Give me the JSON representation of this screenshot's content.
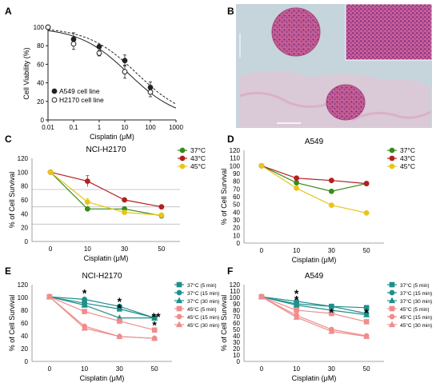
{
  "panel_labels": [
    "A",
    "B",
    "C",
    "D",
    "E",
    "F"
  ],
  "chart_data": [
    {
      "panel": "A",
      "type": "line",
      "xscale": "log",
      "xlim": [
        0.01,
        1000
      ],
      "ylim": [
        0,
        100
      ],
      "xticks": [
        "0.01",
        "0.1",
        "1",
        "10",
        "100",
        "1000"
      ],
      "yticks": [
        "0",
        "20",
        "40",
        "60",
        "80",
        "100"
      ],
      "title": "",
      "xlabel": "Cisplatin (μM)",
      "ylabel": "Cell Viability (%)",
      "legend_position": "bottom-left",
      "series": [
        {
          "name": "A549 cell line",
          "style": "dashed",
          "marker": "filled-circle",
          "color": "#222222",
          "x": [
            0.01,
            0.1,
            1,
            10,
            100
          ],
          "y": [
            100,
            87,
            79,
            64,
            35
          ],
          "err": [
            0,
            7,
            2,
            6,
            6
          ]
        },
        {
          "name": "H2170 cell line",
          "style": "solid",
          "marker": "open-circle",
          "color": "#222222",
          "x": [
            0.01,
            0.1,
            1,
            10,
            100
          ],
          "y": [
            100,
            82,
            72,
            52,
            30
          ],
          "err": [
            0,
            6,
            3,
            7,
            5
          ]
        }
      ]
    },
    {
      "panel": "C",
      "type": "line",
      "title": "NCI-H2170",
      "xlabel": "Cisplatin (μM)",
      "ylabel": "% of Cell Survival",
      "categories": [
        "0",
        "10",
        "30",
        "50"
      ],
      "ylim": [
        0,
        120
      ],
      "yticks": [
        "0",
        "20",
        "40",
        "60",
        "80",
        "100",
        "120"
      ],
      "gridlines": [
        25,
        50,
        75
      ],
      "legend_position": "top-right",
      "series": [
        {
          "name": "37°C",
          "color": "#3a8a1a",
          "marker": "circle",
          "values": [
            100,
            47,
            47,
            37
          ],
          "err": [
            0,
            0,
            0,
            0
          ]
        },
        {
          "name": "43°C",
          "color": "#b32020",
          "marker": "circle",
          "values": [
            100,
            87,
            60,
            50
          ],
          "err": [
            0,
            8,
            0,
            0
          ]
        },
        {
          "name": "45°C",
          "color": "#e8c51a",
          "marker": "circle",
          "values": [
            100,
            57,
            42,
            38
          ],
          "err": [
            0,
            5,
            0,
            0
          ]
        }
      ]
    },
    {
      "panel": "D",
      "type": "line",
      "title": "A549",
      "xlabel": "Cisplatin (μM)",
      "ylabel": "% of Cell Survival",
      "categories": [
        "0",
        "10",
        "30",
        "50"
      ],
      "ylim": [
        0,
        120
      ],
      "yticks": [
        "0",
        "10",
        "20",
        "30",
        "40",
        "50",
        "60",
        "70",
        "80",
        "90",
        "100",
        "110",
        "120"
      ],
      "legend_position": "top-right",
      "series": [
        {
          "name": "37°C",
          "color": "#3a8a1a",
          "marker": "circle",
          "values": [
            100,
            78,
            67,
            77
          ]
        },
        {
          "name": "43°C",
          "color": "#b32020",
          "marker": "circle",
          "values": [
            100,
            84,
            81,
            77
          ]
        },
        {
          "name": "45°C",
          "color": "#e8c51a",
          "marker": "circle",
          "values": [
            100,
            71,
            49,
            39
          ]
        }
      ]
    },
    {
      "panel": "E",
      "type": "line",
      "title": "NCI-H2170",
      "xlabel": "Cisplatin (μM)",
      "ylabel": "% of Cell Survival",
      "categories": [
        "0",
        "10",
        "30",
        "50"
      ],
      "ylim": [
        0,
        120
      ],
      "yticks": [
        "0",
        "20",
        "40",
        "60",
        "80",
        "100",
        "120"
      ],
      "legend_position": "top-right",
      "series": [
        {
          "name": "37°C (5 min)",
          "color": "#1f8f8a",
          "marker": "square",
          "values": [
            101,
            91,
            82,
            68
          ]
        },
        {
          "name": "37°C (15 min)",
          "color": "#1f8f8a",
          "marker": "circle",
          "values": [
            101,
            97,
            86,
            68
          ]
        },
        {
          "name": "37°C (30 min)",
          "color": "#1f8f8a",
          "marker": "triangle",
          "values": [
            101,
            88,
            68,
            68
          ]
        },
        {
          "name": "45°C (5 min)",
          "color": "#f08c8c",
          "marker": "square",
          "values": [
            101,
            78,
            63,
            49
          ]
        },
        {
          "name": "45°C (15 min)",
          "color": "#f08c8c",
          "marker": "circle",
          "values": [
            101,
            55,
            39,
            36
          ]
        },
        {
          "name": "45°C (30 min)",
          "color": "#f08c8c",
          "marker": "triangle",
          "values": [
            101,
            52,
            39,
            36
          ]
        }
      ],
      "annotations": [
        {
          "text": "*",
          "x": "10",
          "y": 107
        },
        {
          "text": "*",
          "x": "30",
          "y": 94
        },
        {
          "text": "*",
          "x": "30",
          "y": 84
        },
        {
          "text": "**",
          "x": "50",
          "y": 70
        },
        {
          "text": "*",
          "x": "50",
          "y": 57
        }
      ]
    },
    {
      "panel": "F",
      "type": "line",
      "title": "A549",
      "xlabel": "Cisplatin (μM)",
      "ylabel": "% of Cell Survival",
      "categories": [
        "0",
        "10",
        "30",
        "50"
      ],
      "ylim": [
        0,
        120
      ],
      "yticks": [
        "0",
        "10",
        "20",
        "30",
        "40",
        "50",
        "60",
        "70",
        "80",
        "90",
        "100",
        "110",
        "120"
      ],
      "legend_position": "top-right",
      "series": [
        {
          "name": "37°C (5 min)",
          "color": "#1f8f8a",
          "marker": "square",
          "values": [
            101,
            90,
            86,
            84
          ]
        },
        {
          "name": "37°C (15 min)",
          "color": "#1f8f8a",
          "marker": "circle",
          "values": [
            101,
            94,
            86,
            75
          ]
        },
        {
          "name": "37°C (30 min)",
          "color": "#1f8f8a",
          "marker": "triangle",
          "values": [
            101,
            88,
            80,
            73
          ]
        },
        {
          "name": "45°C (5 min)",
          "color": "#f08c8c",
          "marker": "square",
          "values": [
            101,
            80,
            75,
            62
          ]
        },
        {
          "name": "45°C (15 min)",
          "color": "#f08c8c",
          "marker": "circle",
          "values": [
            101,
            72,
            50,
            40
          ]
        },
        {
          "name": "45°C (30 min)",
          "color": "#f08c8c",
          "marker": "triangle",
          "values": [
            101,
            69,
            47,
            39
          ]
        }
      ],
      "annotations": [
        {
          "text": "*",
          "x": "10",
          "y": 106
        },
        {
          "text": "*",
          "x": "10",
          "y": 97
        },
        {
          "text": "*",
          "x": "30",
          "y": 77
        },
        {
          "text": "*",
          "x": "50",
          "y": 76
        }
      ]
    }
  ],
  "micrograph": {
    "panel": "B",
    "background_color": "#c6d4dc",
    "tissue_color": "#c85a8c",
    "stroma_color": "#e4c6d6"
  }
}
